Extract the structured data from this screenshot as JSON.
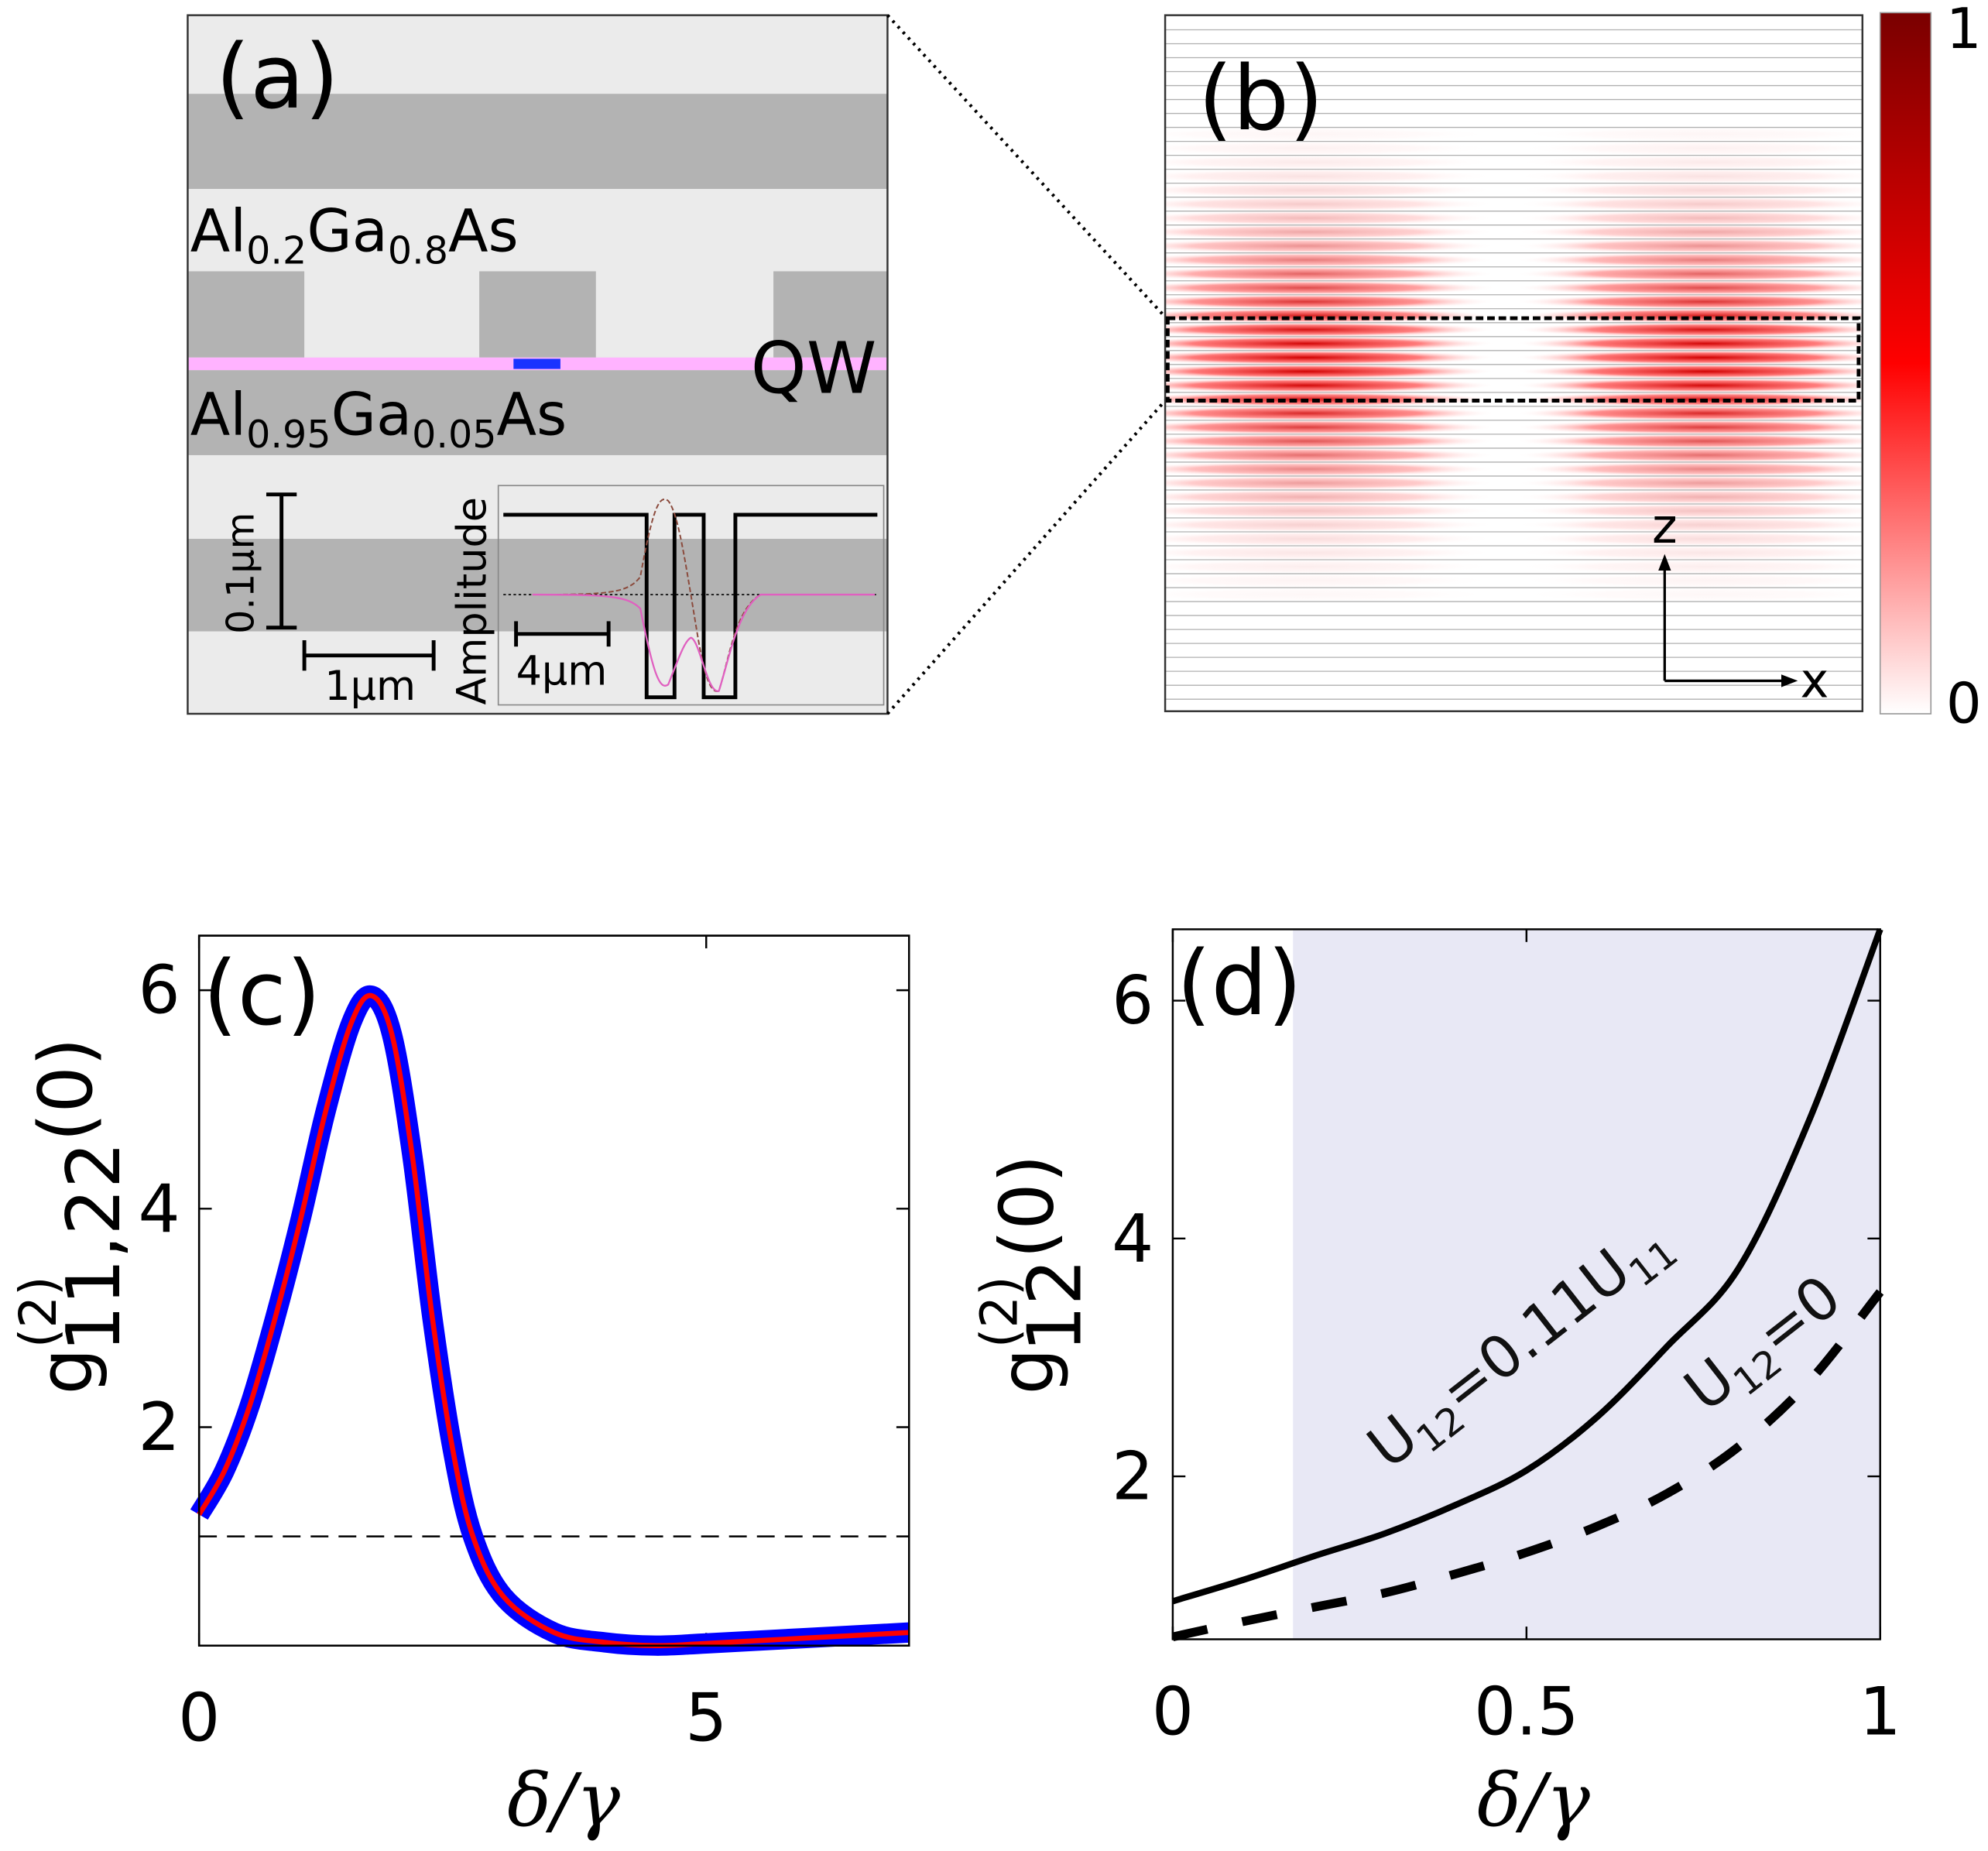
{
  "panel_a": {
    "label": "(a)",
    "layer_top": {
      "base": "Al",
      "s1": "0.2",
      "mid": "Ga",
      "s2": "0.8",
      "end": "As"
    },
    "layer_bottom": {
      "base": "Al",
      "s1": "0.95",
      "mid": "Ga",
      "s2": "0.05",
      "end": "As"
    },
    "qw_label": "QW",
    "scale_vertical": "0.1µm",
    "scale_horizontal": "1µm",
    "inset_ylabel": "Amplitude",
    "inset_scale": "4µm",
    "colors": {
      "light": "#ebebeb",
      "dark": "#b3b3b3",
      "qw": "#ffb3ff",
      "qd": "#1a33ff"
    }
  },
  "panel_b": {
    "label": "(b)",
    "colorbar_max": "1",
    "colorbar_min": "0",
    "axis_z": "z",
    "axis_x": "x"
  },
  "chart_data": [
    {
      "type": "line",
      "panel": "(c)",
      "xlabel": "δ/γ",
      "ylabel": {
        "base": "g",
        "sup": "(2)",
        "sub": "11,22",
        "tail": "(0)"
      },
      "xlim": [
        0,
        7
      ],
      "ylim": [
        0,
        6.5
      ],
      "xticks": [
        "0",
        "5"
      ],
      "xtick_values": [
        0,
        5
      ],
      "yticks": [
        "2",
        "4",
        "6"
      ],
      "ytick_values": [
        2,
        4,
        6
      ],
      "reference_line": 1,
      "series": [
        {
          "name": "g11",
          "color": "#0000ff",
          "x": [
            0,
            0.25,
            0.5,
            0.75,
            1,
            1.25,
            1.5,
            1.7,
            1.9,
            2.1,
            2.3,
            2.5,
            2.7,
            3,
            3.5,
            4,
            4.5,
            5,
            6,
            7
          ],
          "y": [
            1.2,
            1.6,
            2.2,
            3.0,
            3.9,
            4.9,
            5.7,
            5.95,
            5.6,
            4.5,
            3.0,
            1.8,
            1.0,
            0.45,
            0.12,
            0.03,
            0.0,
            0.02,
            0.07,
            0.12
          ]
        },
        {
          "name": "g22",
          "color": "#ff0000",
          "x": [
            0,
            0.25,
            0.5,
            0.75,
            1,
            1.25,
            1.5,
            1.7,
            1.9,
            2.1,
            2.3,
            2.5,
            2.7,
            3,
            3.5,
            4,
            4.5,
            5,
            6,
            7
          ],
          "y": [
            1.2,
            1.6,
            2.2,
            3.0,
            3.9,
            4.9,
            5.7,
            5.95,
            5.6,
            4.5,
            3.0,
            1.8,
            1.0,
            0.45,
            0.12,
            0.03,
            0.0,
            0.02,
            0.07,
            0.12
          ]
        }
      ]
    },
    {
      "type": "line",
      "panel": "(d)",
      "xlabel": "δ/γ",
      "ylabel": {
        "base": "g",
        "sup": "(2)",
        "sub": "12",
        "tail": "(0)"
      },
      "xlim": [
        0,
        1
      ],
      "ylim": [
        0.63,
        6.6
      ],
      "xticks": [
        "0",
        "0.5",
        "1"
      ],
      "xtick_values": [
        0,
        0.5,
        1
      ],
      "yticks": [
        "2",
        "4",
        "6"
      ],
      "ytick_values": [
        2,
        4,
        6
      ],
      "shaded_region_x": [
        0.17,
        1
      ],
      "shade_color": "#e8e8f5",
      "series": [
        {
          "name": "U12=0.11U11",
          "label": {
            "a": "U",
            "s1": "12",
            "b": "=0.11U",
            "s2": "11"
          },
          "style": "solid",
          "x": [
            0,
            0.1,
            0.2,
            0.3,
            0.4,
            0.5,
            0.6,
            0.7,
            0.8,
            0.9,
            1
          ],
          "y": [
            0.95,
            1.13,
            1.33,
            1.52,
            1.76,
            2.05,
            2.5,
            3.1,
            3.75,
            5.0,
            6.6
          ]
        },
        {
          "name": "U12=0",
          "label": {
            "a": "U",
            "s1": "12",
            "b": "=0"
          },
          "style": "dashed",
          "x": [
            0,
            0.1,
            0.2,
            0.3,
            0.4,
            0.5,
            0.6,
            0.7,
            0.8,
            0.9,
            1
          ],
          "y": [
            0.65,
            0.78,
            0.9,
            1.02,
            1.18,
            1.36,
            1.58,
            1.86,
            2.25,
            2.8,
            3.55
          ]
        }
      ]
    }
  ]
}
